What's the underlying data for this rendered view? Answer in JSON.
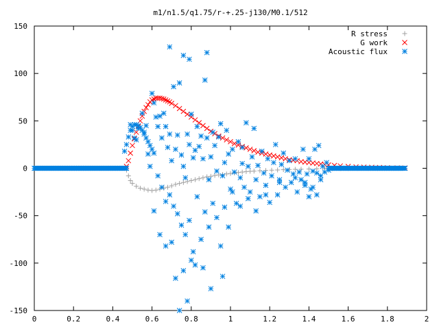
{
  "chart_data": {
    "type": "scatter",
    "title": "m1/n1.5/q1.75/r-+.25-j130/M0.1/512",
    "xlabel": "",
    "ylabel": "",
    "xlim": [
      0,
      2
    ],
    "ylim": [
      -150,
      150
    ],
    "x_ticks": [
      "0",
      "0.2",
      "0.4",
      "0.6",
      "0.8",
      "1",
      "1.2",
      "1.4",
      "1.6",
      "1.8",
      "2"
    ],
    "y_ticks": [
      "150",
      "100",
      "50",
      "0",
      "-50",
      "-100",
      "-150"
    ],
    "grid": false,
    "legend_position": "top-right",
    "series": [
      {
        "name": "R stress",
        "marker": "plus",
        "color": "#a0a0a0",
        "points": [
          [
            0.47,
            -2
          ],
          [
            0.48,
            -8
          ],
          [
            0.49,
            -13
          ],
          [
            0.5,
            -16
          ],
          [
            0.52,
            -19
          ],
          [
            0.54,
            -21
          ],
          [
            0.56,
            -22
          ],
          [
            0.58,
            -23
          ],
          [
            0.6,
            -23.5
          ],
          [
            0.62,
            -23
          ],
          [
            0.64,
            -22
          ],
          [
            0.66,
            -21
          ],
          [
            0.68,
            -20
          ],
          [
            0.7,
            -18.5
          ],
          [
            0.72,
            -17
          ],
          [
            0.74,
            -16
          ],
          [
            0.76,
            -15
          ],
          [
            0.78,
            -14
          ],
          [
            0.8,
            -13
          ],
          [
            0.82,
            -12
          ],
          [
            0.84,
            -11
          ],
          [
            0.86,
            -10
          ],
          [
            0.88,
            -9
          ],
          [
            0.9,
            -8.5
          ],
          [
            0.92,
            -7.5
          ],
          [
            0.94,
            -7
          ],
          [
            0.96,
            -6.5
          ],
          [
            0.98,
            -6
          ],
          [
            1.0,
            -5.5
          ],
          [
            1.02,
            -5
          ],
          [
            1.04,
            -4.5
          ],
          [
            1.06,
            -4
          ],
          [
            1.08,
            -3.5
          ],
          [
            1.1,
            -3.2
          ],
          [
            1.12,
            -3
          ],
          [
            1.15,
            -2.6
          ],
          [
            1.18,
            -2.3
          ],
          [
            1.21,
            -2
          ],
          [
            1.24,
            -1.8
          ],
          [
            1.27,
            -1.5
          ],
          [
            1.3,
            -1.3
          ],
          [
            1.33,
            -1.1
          ],
          [
            1.36,
            -1
          ],
          [
            1.4,
            -0.8
          ],
          [
            1.44,
            -0.6
          ],
          [
            1.48,
            -0.5
          ],
          [
            1.52,
            -0.4
          ],
          [
            1.56,
            -0.3
          ],
          [
            1.6,
            -0.2
          ],
          [
            1.65,
            -0.15
          ],
          [
            1.7,
            -0.1
          ],
          [
            1.75,
            -0.05
          ],
          [
            1.8,
            0
          ],
          [
            1.85,
            0
          ],
          [
            1.89,
            0
          ]
        ]
      },
      {
        "name": "G work",
        "marker": "cross",
        "color": "#ff0000",
        "points": [
          [
            0.47,
            2
          ],
          [
            0.48,
            8
          ],
          [
            0.49,
            16
          ],
          [
            0.5,
            24
          ],
          [
            0.51,
            31
          ],
          [
            0.52,
            38
          ],
          [
            0.53,
            44
          ],
          [
            0.54,
            50
          ],
          [
            0.55,
            55
          ],
          [
            0.56,
            60
          ],
          [
            0.57,
            64
          ],
          [
            0.58,
            67
          ],
          [
            0.59,
            70
          ],
          [
            0.6,
            72
          ],
          [
            0.61,
            73
          ],
          [
            0.62,
            74
          ],
          [
            0.63,
            74
          ],
          [
            0.64,
            74
          ],
          [
            0.65,
            73.5
          ],
          [
            0.66,
            73
          ],
          [
            0.67,
            72
          ],
          [
            0.68,
            71
          ],
          [
            0.69,
            70
          ],
          [
            0.7,
            68.5
          ],
          [
            0.72,
            66
          ],
          [
            0.74,
            63
          ],
          [
            0.76,
            60
          ],
          [
            0.78,
            57
          ],
          [
            0.8,
            54
          ],
          [
            0.82,
            51
          ],
          [
            0.84,
            48
          ],
          [
            0.86,
            45
          ],
          [
            0.88,
            42
          ],
          [
            0.9,
            39
          ],
          [
            0.92,
            36.5
          ],
          [
            0.94,
            34
          ],
          [
            0.96,
            32
          ],
          [
            0.98,
            30
          ],
          [
            1.0,
            28
          ],
          [
            1.02,
            26
          ],
          [
            1.04,
            24.5
          ],
          [
            1.06,
            23
          ],
          [
            1.08,
            21.5
          ],
          [
            1.1,
            20
          ],
          [
            1.12,
            18.5
          ],
          [
            1.14,
            17
          ],
          [
            1.16,
            16
          ],
          [
            1.18,
            15
          ],
          [
            1.2,
            14
          ],
          [
            1.22,
            13
          ],
          [
            1.24,
            12
          ],
          [
            1.26,
            11
          ],
          [
            1.28,
            10
          ],
          [
            1.3,
            9
          ],
          [
            1.32,
            8.5
          ],
          [
            1.34,
            8
          ],
          [
            1.36,
            7
          ],
          [
            1.38,
            6.5
          ],
          [
            1.4,
            6
          ],
          [
            1.42,
            5.5
          ],
          [
            1.44,
            5
          ],
          [
            1.46,
            4.5
          ],
          [
            1.48,
            4
          ],
          [
            1.5,
            3.5
          ],
          [
            1.53,
            3
          ],
          [
            1.56,
            2.5
          ],
          [
            1.6,
            2
          ],
          [
            1.64,
            1.5
          ],
          [
            1.68,
            1.2
          ],
          [
            1.72,
            1
          ],
          [
            1.76,
            0.8
          ],
          [
            1.8,
            0.6
          ],
          [
            1.85,
            0.4
          ],
          [
            1.89,
            0.3
          ]
        ]
      },
      {
        "name": "Acoustic flux",
        "marker": "star",
        "color": "#0080e0",
        "baseline_x_range": [
          0,
          0.47
        ],
        "tail_x_range": [
          1.5,
          1.89
        ],
        "curve_points": [
          [
            0.46,
            18
          ],
          [
            0.47,
            25
          ],
          [
            0.48,
            33
          ],
          [
            0.49,
            40
          ],
          [
            0.5,
            44
          ],
          [
            0.51,
            46
          ],
          [
            0.52,
            46
          ],
          [
            0.53,
            45
          ],
          [
            0.54,
            43
          ],
          [
            0.55,
            40
          ],
          [
            0.56,
            36
          ],
          [
            0.57,
            32
          ],
          [
            0.58,
            28
          ],
          [
            0.59,
            24
          ],
          [
            0.6,
            20
          ],
          [
            0.61,
            16
          ]
        ],
        "scatter_points": [
          [
            0.49,
            46
          ],
          [
            0.5,
            40
          ],
          [
            0.51,
            32
          ],
          [
            0.52,
            30
          ],
          [
            0.53,
            42
          ],
          [
            0.55,
            58
          ],
          [
            0.56,
            38
          ],
          [
            0.57,
            45
          ],
          [
            0.58,
            15
          ],
          [
            0.59,
            2
          ],
          [
            0.6,
            79
          ],
          [
            0.61,
            69
          ],
          [
            0.62,
            54
          ],
          [
            0.63,
            44
          ],
          [
            0.64,
            55
          ],
          [
            0.65,
            32
          ],
          [
            0.66,
            58
          ],
          [
            0.67,
            44
          ],
          [
            0.68,
            22
          ],
          [
            0.69,
            36
          ],
          [
            0.7,
            8
          ],
          [
            0.71,
            86
          ],
          [
            0.72,
            20
          ],
          [
            0.73,
            35
          ],
          [
            0.74,
            90
          ],
          [
            0.75,
            14
          ],
          [
            0.76,
            2
          ],
          [
            0.77,
            -10
          ],
          [
            0.78,
            36
          ],
          [
            0.79,
            25
          ],
          [
            0.8,
            57
          ],
          [
            0.81,
            11
          ],
          [
            0.82,
            19
          ],
          [
            0.83,
            44
          ],
          [
            0.84,
            23
          ],
          [
            0.85,
            34
          ],
          [
            0.86,
            10
          ],
          [
            0.87,
            93
          ],
          [
            0.88,
            32
          ],
          [
            0.89,
            -12
          ],
          [
            0.9,
            12
          ],
          [
            0.91,
            38
          ],
          [
            0.92,
            24
          ],
          [
            0.93,
            -3
          ],
          [
            0.94,
            33
          ],
          [
            0.95,
            47
          ],
          [
            0.96,
            -8
          ],
          [
            0.97,
            6
          ],
          [
            0.98,
            40
          ],
          [
            0.99,
            15
          ],
          [
            1.0,
            -22
          ],
          [
            1.01,
            20
          ],
          [
            1.02,
            -4
          ],
          [
            1.03,
            -37
          ],
          [
            1.04,
            28
          ],
          [
            1.05,
            -10
          ],
          [
            1.06,
            5
          ],
          [
            1.07,
            -20
          ],
          [
            1.08,
            48
          ],
          [
            1.09,
            2
          ],
          [
            1.1,
            -25
          ],
          [
            1.11,
            12
          ],
          [
            1.12,
            42
          ],
          [
            1.13,
            -12
          ],
          [
            1.14,
            3
          ],
          [
            1.15,
            -30
          ],
          [
            1.16,
            18
          ],
          [
            1.17,
            -5
          ],
          [
            1.18,
            -18
          ],
          [
            1.19,
            10
          ],
          [
            1.2,
            -36
          ],
          [
            1.21,
            -8
          ],
          [
            1.22,
            6
          ],
          [
            1.23,
            25
          ],
          [
            1.24,
            -28
          ],
          [
            1.25,
            -12
          ],
          [
            1.26,
            4
          ],
          [
            1.27,
            16
          ],
          [
            1.28,
            -20
          ],
          [
            1.29,
            -2
          ],
          [
            1.3,
            8
          ],
          [
            1.31,
            -15
          ],
          [
            1.32,
            -6
          ],
          [
            1.33,
            10
          ],
          [
            1.34,
            -25
          ],
          [
            1.35,
            -4
          ],
          [
            1.36,
            -12
          ],
          [
            1.37,
            20
          ],
          [
            1.38,
            -18
          ],
          [
            1.39,
            -6
          ],
          [
            1.4,
            10
          ],
          [
            1.41,
            -22
          ],
          [
            1.42,
            -3
          ],
          [
            1.43,
            20
          ],
          [
            1.44,
            -5
          ],
          [
            1.45,
            24
          ],
          [
            1.46,
            -12
          ],
          [
            1.47,
            2
          ],
          [
            1.48,
            -4
          ],
          [
            1.49,
            6
          ],
          [
            1.5,
            -2
          ],
          [
            0.63,
            -8
          ],
          [
            0.65,
            -20
          ],
          [
            0.67,
            -35
          ],
          [
            0.69,
            -28
          ],
          [
            0.71,
            -40
          ],
          [
            0.73,
            -48
          ],
          [
            0.75,
            -60
          ],
          [
            0.77,
            -70
          ],
          [
            0.79,
            -55
          ],
          [
            0.81,
            -88
          ],
          [
            0.83,
            -30
          ],
          [
            0.85,
            -75
          ],
          [
            0.87,
            -46
          ],
          [
            0.89,
            -62
          ],
          [
            0.91,
            -37
          ],
          [
            0.93,
            -52
          ],
          [
            0.95,
            -82
          ],
          [
            0.97,
            -41
          ],
          [
            0.99,
            -62
          ],
          [
            1.01,
            -25
          ],
          [
            1.05,
            -40
          ],
          [
            1.09,
            -32
          ],
          [
            1.13,
            -45
          ],
          [
            0.61,
            -45
          ],
          [
            0.64,
            -70
          ],
          [
            0.67,
            -82
          ],
          [
            0.7,
            -78
          ],
          [
            0.72,
            -116
          ],
          [
            0.74,
            -150
          ],
          [
            0.76,
            -108
          ],
          [
            0.78,
            -140
          ],
          [
            0.8,
            -97
          ],
          [
            0.82,
            -102
          ],
          [
            0.86,
            -105
          ],
          [
            0.9,
            -127
          ],
          [
            0.96,
            -114
          ],
          [
            0.69,
            128
          ],
          [
            0.76,
            119
          ],
          [
            0.79,
            115
          ],
          [
            0.88,
            122
          ],
          [
            1.06,
            22
          ],
          [
            1.18,
            -28
          ],
          [
            1.25,
            -15
          ],
          [
            1.33,
            -10
          ],
          [
            1.38,
            -15
          ],
          [
            1.42,
            -20
          ],
          [
            1.46,
            -8
          ],
          [
            1.44,
            -28
          ],
          [
            1.4,
            -30
          ]
        ]
      }
    ]
  }
}
